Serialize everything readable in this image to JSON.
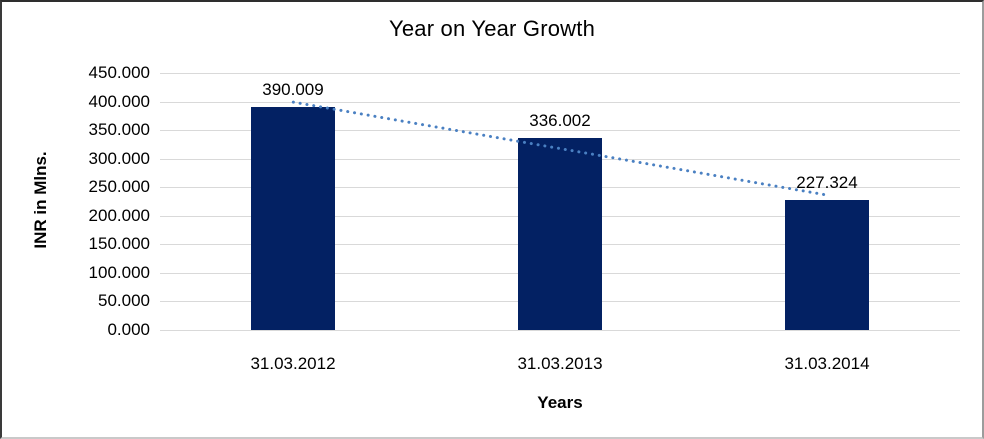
{
  "chart_data": {
    "type": "bar",
    "title": "Year on Year Growth",
    "xlabel": "Years",
    "ylabel": "INR in Mlns.",
    "categories": [
      "31.03.2012",
      "31.03.2013",
      "31.03.2014"
    ],
    "values": [
      390.009,
      336.002,
      227.324
    ],
    "data_labels": [
      "390.009",
      "336.002",
      "227.324"
    ],
    "ylim": [
      0,
      450
    ],
    "ytick_step": 50,
    "ytick_labels": [
      "0.000",
      "50.000",
      "100.000",
      "150.000",
      "200.000",
      "250.000",
      "300.000",
      "350.000",
      "400.000",
      "450.000"
    ],
    "grid": true,
    "legend": "none",
    "bar_color": "#032163",
    "gridline_color": "#d9d9d9",
    "trendline": {
      "type": "linear",
      "style": "dotted",
      "color": "#4a80c2"
    }
  }
}
